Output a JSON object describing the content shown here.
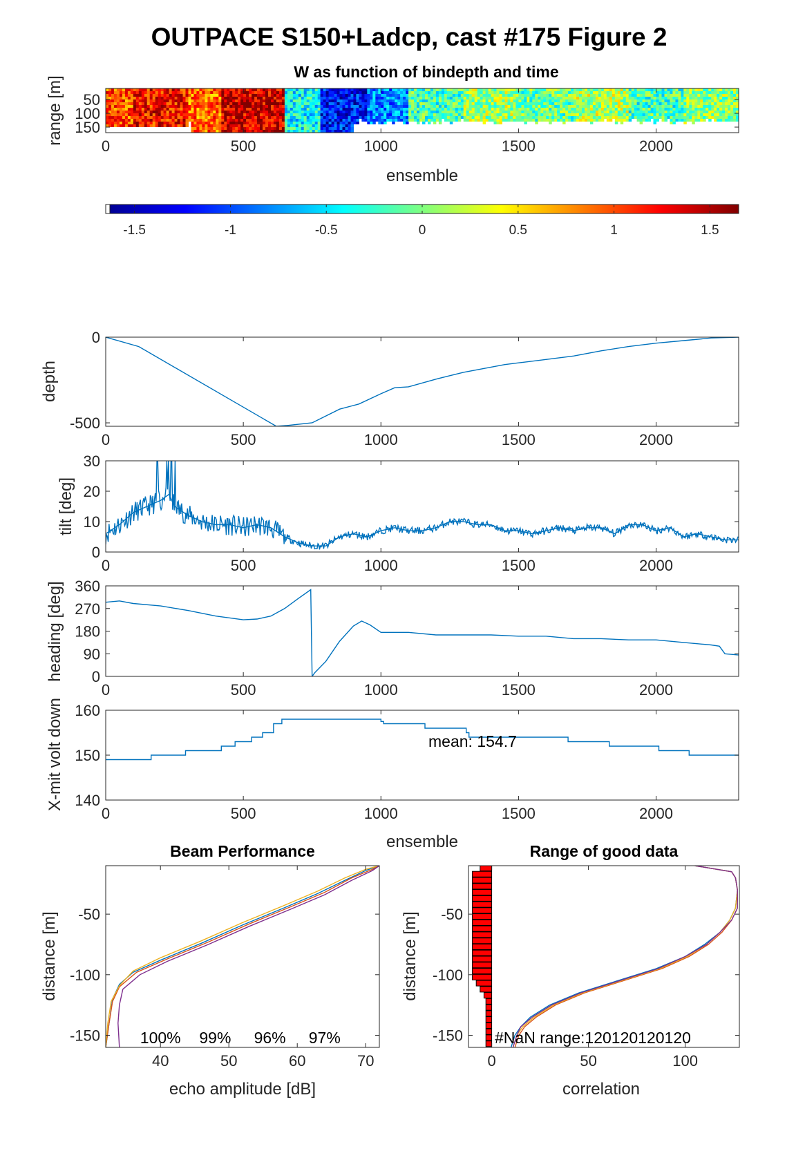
{
  "figure": {
    "title": "OUTPACE S150+Ladcp, cast #175 Figure 2"
  },
  "chart_data": [
    {
      "id": "w-panel",
      "type": "heatmap",
      "title": "W as function of bindepth and time",
      "xlabel": "ensemble",
      "ylabel": "range [m]",
      "xlim": [
        0,
        2300
      ],
      "ylim": [
        170,
        10
      ],
      "xticks": [
        "0",
        "500",
        "1000",
        "1500",
        "2000"
      ],
      "yticks": [
        "50",
        "100",
        "150"
      ],
      "clim": [
        -1.65,
        1.65
      ],
      "colormap": "jet",
      "colorbar_ticks": [
        "-1.5",
        "-1",
        "-0.5",
        "0",
        "0.5",
        "1",
        "1.5"
      ],
      "segments": [
        {
          "x": [
            0,
            100
          ],
          "w": 1.0
        },
        {
          "x": [
            100,
            300
          ],
          "w": 1.2
        },
        {
          "x": [
            300,
            420
          ],
          "w": 0.9
        },
        {
          "x": [
            420,
            650
          ],
          "w": 1.4
        },
        {
          "x": [
            650,
            780
          ],
          "w": -0.4
        },
        {
          "x": [
            780,
            950
          ],
          "w": -1.2
        },
        {
          "x": [
            950,
            1100
          ],
          "w": -0.8
        },
        {
          "x": [
            1100,
            1300
          ],
          "w": -0.2
        },
        {
          "x": [
            1300,
            1500
          ],
          "w": 0.1
        },
        {
          "x": [
            1500,
            1700
          ],
          "w": -0.1
        },
        {
          "x": [
            1700,
            1900
          ],
          "w": 0.15
        },
        {
          "x": [
            1900,
            2100
          ],
          "w": -0.2
        },
        {
          "x": [
            2100,
            2300
          ],
          "w": 0.05
        }
      ]
    },
    {
      "id": "depth-panel",
      "type": "line",
      "xlabel": "",
      "ylabel": "depth",
      "xlim": [
        0,
        2300
      ],
      "ylim": [
        -520,
        0
      ],
      "xticks": [
        "0",
        "500",
        "1000",
        "1500",
        "2000"
      ],
      "yticks": [
        "0",
        "-500"
      ],
      "series": [
        {
          "color": "#0072BD",
          "x": [
            0,
            120,
            620,
            660,
            750,
            850,
            920,
            1000,
            1050,
            1100,
            1200,
            1250,
            1300,
            1400,
            1450,
            1500,
            1600,
            1700,
            1800,
            1900,
            2000,
            2100,
            2200,
            2300
          ],
          "y": [
            0,
            -55,
            -520,
            -515,
            -500,
            -420,
            -390,
            -330,
            -295,
            -290,
            -245,
            -225,
            -205,
            -175,
            -160,
            -150,
            -130,
            -110,
            -80,
            -55,
            -35,
            -20,
            -5,
            0
          ]
        }
      ]
    },
    {
      "id": "tilt-panel",
      "type": "line",
      "xlabel": "",
      "ylabel": "tilt [deg]",
      "xlim": [
        0,
        2300
      ],
      "ylim": [
        0,
        30
      ],
      "xticks": [
        "0",
        "500",
        "1000",
        "1500",
        "2000"
      ],
      "yticks": [
        "0",
        "10",
        "20",
        "30"
      ],
      "series": [
        {
          "color": "#0072BD",
          "x": [
            0,
            50,
            100,
            150,
            200,
            230,
            250,
            300,
            350,
            400,
            450,
            500,
            550,
            600,
            650,
            700,
            750,
            800,
            850,
            900,
            950,
            1000,
            1050,
            1100,
            1150,
            1200,
            1250,
            1300,
            1350,
            1400,
            1450,
            1500,
            1550,
            1600,
            1650,
            1700,
            1750,
            1800,
            1850,
            1900,
            1950,
            2000,
            2050,
            2100,
            2150,
            2200,
            2250,
            2300
          ],
          "y": [
            6,
            9,
            13,
            15,
            17,
            19,
            15,
            12,
            10,
            9,
            9,
            8,
            9,
            8,
            5,
            3,
            2,
            2,
            5,
            6,
            5,
            7,
            8,
            7,
            7,
            8,
            10,
            10,
            9,
            9,
            7,
            7,
            6,
            7,
            8,
            7,
            8,
            8,
            6,
            9,
            9,
            7,
            8,
            5,
            6,
            5,
            4,
            4
          ]
        }
      ]
    },
    {
      "id": "heading-panel",
      "type": "line",
      "xlabel": "",
      "ylabel": "heading [deg]",
      "xlim": [
        0,
        2300
      ],
      "ylim": [
        0,
        360
      ],
      "xticks": [
        "0",
        "500",
        "1000",
        "1500",
        "2000"
      ],
      "yticks": [
        "0",
        "90",
        "180",
        "270",
        "360"
      ],
      "series": [
        {
          "color": "#0072BD",
          "x": [
            0,
            50,
            100,
            200,
            300,
            400,
            500,
            550,
            600,
            650,
            700,
            745,
            750,
            760,
            800,
            850,
            900,
            930,
            960,
            1000,
            1100,
            1200,
            1300,
            1400,
            1500,
            1600,
            1700,
            1800,
            1900,
            2000,
            2100,
            2200,
            2230,
            2250,
            2300
          ],
          "y": [
            295,
            300,
            290,
            280,
            262,
            240,
            225,
            228,
            240,
            270,
            310,
            345,
            0,
            15,
            60,
            140,
            200,
            220,
            205,
            175,
            175,
            165,
            165,
            165,
            160,
            160,
            150,
            150,
            145,
            145,
            135,
            125,
            120,
            90,
            85
          ]
        }
      ]
    },
    {
      "id": "volt-panel",
      "type": "line",
      "xlabel": "ensemble",
      "ylabel": "X-mit volt down",
      "xlim": [
        0,
        2300
      ],
      "ylim": [
        140,
        160
      ],
      "xticks": [
        "0",
        "500",
        "1000",
        "1500",
        "2000"
      ],
      "yticks": [
        "140",
        "150",
        "160"
      ],
      "annotation": "mean: 154.7",
      "series": [
        {
          "color": "#0072BD",
          "x": [
            0,
            165,
            165,
            290,
            290,
            420,
            420,
            470,
            470,
            530,
            530,
            570,
            570,
            610,
            610,
            640,
            640,
            1000,
            1000,
            1010,
            1010,
            1160,
            1160,
            1310,
            1310,
            1320,
            1320,
            1350,
            1350,
            1680,
            1680,
            1830,
            1830,
            2010,
            2010,
            2120,
            2120,
            2300
          ],
          "y": [
            149,
            149,
            150,
            150,
            151,
            151,
            152,
            152,
            153,
            153,
            154,
            154,
            155,
            155,
            157,
            157,
            158,
            158,
            157.5,
            157.5,
            157,
            157,
            156,
            156,
            155,
            155,
            154,
            154,
            154,
            154,
            153,
            153,
            152,
            152,
            151,
            151,
            150,
            150
          ]
        }
      ]
    },
    {
      "id": "beam-panel",
      "type": "line",
      "title": "Beam Performance",
      "xlabel": "echo amplitude [dB]",
      "ylabel": "distance [m]",
      "xlim": [
        32,
        72
      ],
      "ylim": [
        -160,
        -10
      ],
      "xticks": [
        "40",
        "50",
        "60",
        "70"
      ],
      "yticks": [
        "-50",
        "-100",
        "-150"
      ],
      "beam_percentages": [
        "100%",
        "99%",
        "96%",
        "97%"
      ],
      "series": [
        {
          "color": "#0072BD",
          "x": [
            32,
            32.5,
            33,
            34,
            36,
            40,
            46,
            52,
            58,
            63,
            67,
            70,
            72
          ],
          "y": [
            -160,
            -140,
            -120,
            -108,
            -98,
            -88,
            -74,
            -59,
            -45,
            -33,
            -22,
            -14,
            -10
          ]
        },
        {
          "color": "#D95319",
          "x": [
            32,
            32.5,
            33,
            34,
            36.5,
            41,
            47,
            53,
            59,
            64,
            68,
            71,
            72
          ],
          "y": [
            -160,
            -140,
            -122,
            -110,
            -98,
            -87,
            -73,
            -58,
            -44,
            -32,
            -20,
            -13,
            -10
          ]
        },
        {
          "color": "#EDB120",
          "x": [
            32,
            32.3,
            32.8,
            34,
            36,
            40,
            46,
            52,
            58,
            63,
            67,
            70,
            72
          ],
          "y": [
            -160,
            -140,
            -122,
            -109,
            -97,
            -86,
            -72,
            -57,
            -43,
            -31,
            -20,
            -13,
            -10
          ]
        },
        {
          "color": "#7E2F8E",
          "x": [
            34,
            33.8,
            34,
            34.5,
            37,
            41,
            47,
            53,
            59,
            64,
            68,
            71,
            72
          ],
          "y": [
            -160,
            -140,
            -125,
            -112,
            -100,
            -89,
            -75,
            -60,
            -46,
            -34,
            -22,
            -14,
            -10
          ]
        }
      ]
    },
    {
      "id": "range-panel",
      "type": "line",
      "title": "Range of good data",
      "xlabel": "correlation",
      "ylabel": "distance [m]",
      "xlim": [
        -12,
        128
      ],
      "ylim": [
        -160,
        -10
      ],
      "xticks": [
        "0",
        "50",
        "100"
      ],
      "yticks": [
        "-50",
        "-100",
        "-150"
      ],
      "annotation": "#NaN range:120120120120",
      "bars": {
        "color": "#FF0000",
        "y": [
          -12,
          -17,
          -22,
          -27,
          -32,
          -37,
          -42,
          -47,
          -52,
          -57,
          -62,
          -67,
          -72,
          -77,
          -82,
          -87,
          -92,
          -97,
          -102,
          -107,
          -112,
          -117,
          -122,
          -127,
          -132,
          -137,
          -142,
          -147,
          -152,
          -157
        ],
        "values": [
          -6,
          -10,
          -10,
          -10,
          -10,
          -10,
          -10,
          -10,
          -10,
          -10,
          -10,
          -10,
          -10,
          -10,
          -10,
          -10,
          -10,
          -10,
          -10,
          -8,
          -6,
          -4,
          -3,
          -3,
          -3,
          -3,
          -3,
          -3,
          -3,
          -3
        ]
      },
      "series": [
        {
          "color": "#0072BD",
          "x": [
            10,
            12,
            15,
            20,
            30,
            45,
            65,
            85,
            100,
            110,
            118,
            123,
            126,
            127,
            126,
            124,
            105
          ],
          "y": [
            -160,
            -150,
            -143,
            -135,
            -125,
            -115,
            -105,
            -95,
            -85,
            -75,
            -65,
            -55,
            -45,
            -30,
            -20,
            -15,
            -10
          ]
        },
        {
          "color": "#D95319",
          "x": [
            12,
            14,
            17,
            23,
            33,
            48,
            68,
            88,
            102,
            112,
            119,
            124,
            127,
            127,
            126,
            124,
            105
          ],
          "y": [
            -160,
            -150,
            -143,
            -135,
            -125,
            -115,
            -105,
            -95,
            -85,
            -75,
            -65,
            -55,
            -45,
            -30,
            -20,
            -15,
            -10
          ]
        },
        {
          "color": "#EDB120",
          "x": [
            11,
            13,
            16,
            22,
            32,
            47,
            67,
            87,
            101,
            111,
            118,
            123,
            126,
            127,
            126,
            124,
            105
          ],
          "y": [
            -160,
            -150,
            -143,
            -135,
            -125,
            -115,
            -105,
            -95,
            -85,
            -75,
            -65,
            -55,
            -45,
            -30,
            -20,
            -15,
            -10
          ]
        },
        {
          "color": "#7E2F8E",
          "x": [
            11,
            13,
            15,
            21,
            31,
            46,
            66,
            86,
            100,
            111,
            118,
            124,
            127,
            127,
            126,
            124,
            105
          ],
          "y": [
            -160,
            -150,
            -143,
            -135,
            -125,
            -115,
            -105,
            -95,
            -85,
            -75,
            -65,
            -55,
            -45,
            -30,
            -20,
            -15,
            -10
          ]
        }
      ]
    }
  ]
}
